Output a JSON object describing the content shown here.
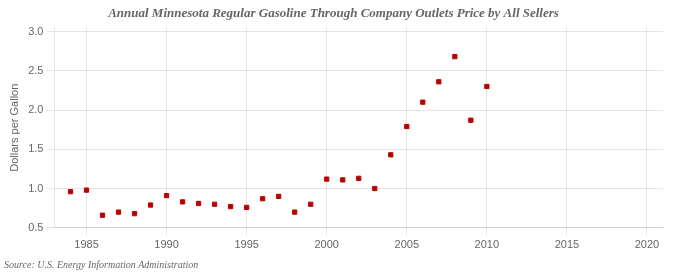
{
  "chart_data": {
    "type": "scatter",
    "title": "Annual Minnesota Regular Gasoline Through Company Outlets Price by All Sellers",
    "ylabel": "Dollars per Gallon",
    "annotations": [
      "Source: U.S. Energy Information Administration"
    ],
    "x": [
      1984,
      1985,
      1986,
      1987,
      1988,
      1989,
      1990,
      1991,
      1992,
      1993,
      1994,
      1995,
      1996,
      1997,
      1998,
      1999,
      2000,
      2001,
      2002,
      2003,
      2004,
      2005,
      2006,
      2007,
      2008,
      2009,
      2010
    ],
    "values": [
      0.96,
      0.98,
      0.66,
      0.7,
      0.68,
      0.79,
      0.91,
      0.83,
      0.81,
      0.8,
      0.77,
      0.76,
      0.87,
      0.9,
      0.7,
      0.8,
      1.12,
      1.11,
      1.13,
      1.0,
      1.43,
      1.79,
      2.1,
      2.36,
      2.68,
      1.87,
      2.3
    ],
    "color": "#bb0000",
    "marker": "square",
    "xlim": [
      1983,
      2021
    ],
    "xticks": [
      1985,
      1990,
      1995,
      2000,
      2005,
      2010,
      2015,
      2020
    ],
    "ylim": [
      0.5,
      3.05
    ],
    "yticks": [
      0.5,
      {
        "value": 1.0,
        "label": "1.0"
      },
      1.5,
      {
        "value": 2.0,
        "label": "2.0"
      },
      2.5,
      {
        "value": 3.0,
        "label": "3.0"
      }
    ],
    "grid": true
  }
}
